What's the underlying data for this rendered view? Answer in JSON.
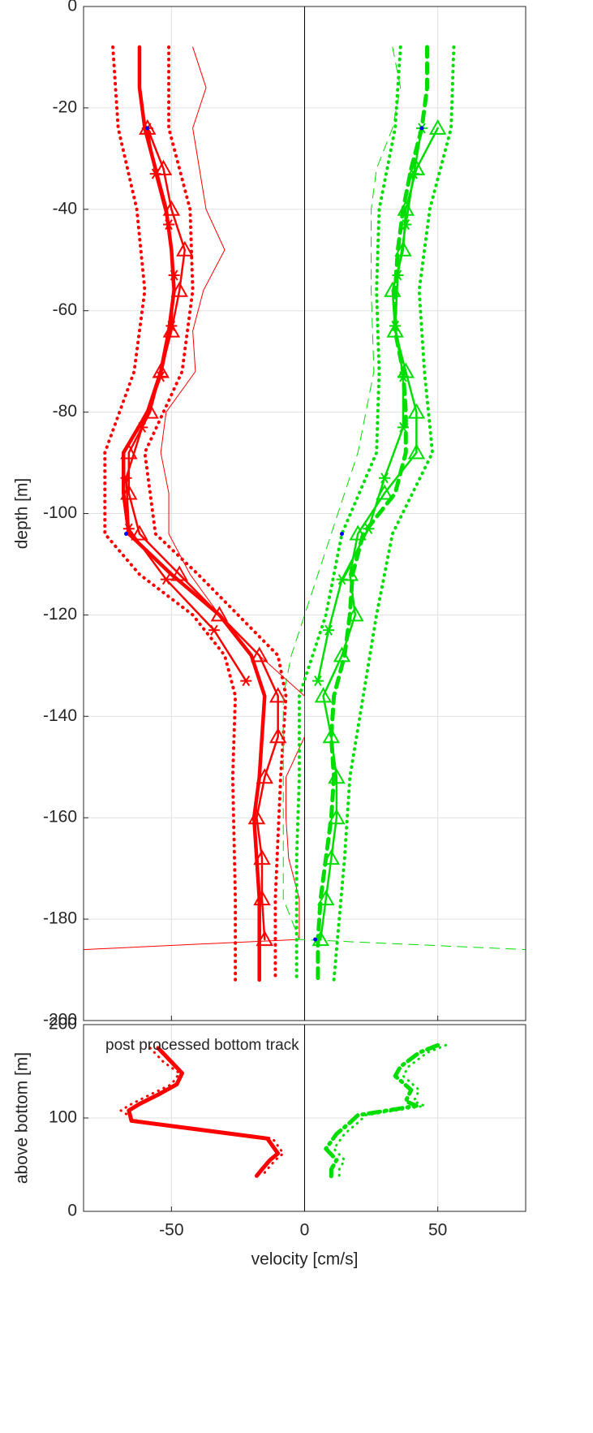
{
  "chart_data": [
    {
      "type": "line",
      "ylabel": "depth [m]",
      "xlim": [
        -83,
        83
      ],
      "ylim": [
        -200,
        0
      ],
      "xticks": [
        -50,
        0,
        50
      ],
      "yticks": [
        -200,
        -180,
        -160,
        -140,
        -120,
        -100,
        -80,
        -60,
        -40,
        -20,
        0
      ],
      "grid": true,
      "zero_line": true,
      "series": [
        {
          "color": "#ff0000",
          "dash": "solid",
          "width": 1,
          "x": [
            -42,
            -37,
            -42,
            -37,
            -30,
            -38,
            -42,
            -41,
            -52,
            -54,
            -51,
            -51,
            -43,
            -32,
            -17,
            0,
            0,
            -7,
            -7,
            -6,
            -2,
            -2,
            -83
          ],
          "y": [
            -8,
            -16,
            -24,
            -40,
            -48,
            -56,
            -64,
            -72,
            -80,
            -88,
            -96,
            -104,
            -112,
            -120,
            -128,
            -136,
            -144,
            -152,
            -160,
            -168,
            -176,
            -184,
            -186
          ]
        },
        {
          "color": "#ff0000",
          "dash": "dotted",
          "width": 4,
          "x": [
            -72,
            -70,
            -63,
            -60,
            -64,
            -75,
            -75,
            -62,
            -42,
            -30,
            -26,
            -27,
            -26,
            -26
          ],
          "y": [
            -8,
            -24,
            -40,
            -56,
            -72,
            -88,
            -104,
            -112,
            -120,
            -128,
            -136,
            -152,
            -176,
            -192
          ]
        },
        {
          "color": "#ff0000",
          "dash": "dotted",
          "width": 4,
          "x": [
            -51,
            -51,
            -43,
            -42,
            -46,
            -60,
            -56,
            -40,
            -25,
            -10,
            -7,
            -9,
            -11,
            -11
          ],
          "y": [
            -8,
            -24,
            -40,
            -56,
            -72,
            -88,
            -104,
            -112,
            -120,
            -128,
            -136,
            -152,
            -176,
            -192
          ]
        },
        {
          "color": "#ff0000",
          "dash": "solid",
          "width": 4.5,
          "x": [
            -62,
            -62,
            -60,
            -56,
            -52,
            -50,
            -49,
            -51,
            -54,
            -59,
            -68,
            -68,
            -66,
            -50,
            -32,
            -20,
            -15,
            -16,
            -17,
            -19,
            -18,
            -17,
            -17,
            -17
          ],
          "y": [
            -8,
            -16,
            -24,
            -32,
            -40,
            -48,
            -56,
            -64,
            -72,
            -80,
            -88,
            -96,
            -104,
            -112,
            -120,
            -128,
            -136,
            -144,
            -152,
            -160,
            -168,
            -176,
            -184,
            -192
          ]
        },
        {
          "color": "#ff0000",
          "dash": "solid",
          "width": 2.5,
          "marker": "triangle",
          "x": [
            -59,
            -53,
            -50,
            -45,
            -47,
            -50,
            -54,
            -58,
            -66,
            -66,
            -62,
            -47,
            -32,
            -17,
            -10,
            -10,
            -15,
            -18,
            -16,
            -16,
            -15
          ],
          "y": [
            -24,
            -32,
            -40,
            -48,
            -56,
            -64,
            -72,
            -80,
            -88,
            -96,
            -104,
            -112,
            -120,
            -128,
            -136,
            -144,
            -152,
            -160,
            -168,
            -176,
            -184
          ]
        },
        {
          "color": "#ff0000",
          "dash": "solid",
          "width": 2.5,
          "marker": "star",
          "x": [
            -59,
            -56,
            -51,
            -49,
            -50,
            -54,
            -61,
            -67,
            -66,
            -52,
            -34,
            -22
          ],
          "y": [
            -24,
            -33,
            -43,
            -53,
            -63,
            -73,
            -83,
            -93,
            -103,
            -113,
            -123,
            -133
          ]
        },
        {
          "color": "#00dd00",
          "dash": "dashed",
          "width": 1,
          "x": [
            33,
            36,
            33,
            27,
            25,
            25,
            26,
            20,
            10,
            0,
            -5,
            -8,
            -8,
            -8,
            -2,
            83
          ],
          "y": [
            -8,
            -16,
            -24,
            -32,
            -40,
            -56,
            -72,
            -88,
            -104,
            -120,
            -128,
            -136,
            -152,
            -176,
            -184,
            -186
          ]
        },
        {
          "color": "#00dd00",
          "dash": "dotted",
          "width": 4,
          "x": [
            36,
            34,
            28,
            27,
            28,
            27,
            14,
            8,
            -2,
            -2,
            -3,
            -3
          ],
          "y": [
            -8,
            -24,
            -40,
            -56,
            -72,
            -88,
            -104,
            -120,
            -136,
            -152,
            -168,
            -192
          ]
        },
        {
          "color": "#00dd00",
          "dash": "dotted",
          "width": 4,
          "x": [
            56,
            55,
            47,
            43,
            45,
            48,
            33,
            27,
            22,
            17,
            15,
            11
          ],
          "y": [
            -8,
            -24,
            -40,
            -56,
            -72,
            -88,
            -104,
            -120,
            -136,
            -152,
            -168,
            -192
          ]
        },
        {
          "color": "#00dd00",
          "dash": "dashed",
          "width": 5,
          "x": [
            46,
            46,
            44,
            40,
            37,
            35,
            34,
            34,
            37,
            38,
            38,
            34,
            22,
            18,
            17,
            15,
            11,
            10,
            11,
            10,
            8,
            6,
            5,
            5
          ],
          "y": [
            -8,
            -16,
            -24,
            -32,
            -40,
            -48,
            -56,
            -64,
            -72,
            -80,
            -88,
            -96,
            -104,
            -112,
            -120,
            -128,
            -136,
            -144,
            -152,
            -160,
            -168,
            -176,
            -184,
            -192
          ]
        },
        {
          "color": "#00dd00",
          "dash": "solid",
          "width": 2.5,
          "marker": "triangle",
          "x": [
            50,
            42,
            38,
            37,
            33,
            34,
            38,
            42,
            42,
            30,
            20,
            17,
            19,
            14,
            7,
            10,
            12,
            12,
            10,
            8,
            6
          ],
          "y": [
            -24,
            -32,
            -40,
            -48,
            -56,
            -64,
            -72,
            -80,
            -88,
            -96,
            -104,
            -112,
            -120,
            -128,
            -136,
            -144,
            -152,
            -160,
            -168,
            -176,
            -184
          ]
        },
        {
          "color": "#00dd00",
          "dash": "solid",
          "width": 2.5,
          "marker": "star",
          "x": [
            44,
            41,
            38,
            35,
            34,
            37,
            37,
            30,
            24,
            14,
            9,
            5
          ],
          "y": [
            -24,
            -33,
            -43,
            -53,
            -63,
            -73,
            -83,
            -93,
            -103,
            -113,
            -123,
            -133
          ]
        },
        {
          "color": "#0000ff",
          "dash": "none",
          "width": 0,
          "marker": "dot",
          "x": [
            -59,
            -67,
            44,
            14,
            4
          ],
          "y": [
            -24,
            -104,
            -24,
            -104,
            -184
          ]
        }
      ]
    },
    {
      "type": "line",
      "ylabel": "above bottom [m]",
      "xlabel": "velocity [cm/s]",
      "annotation": "post processed bottom track",
      "xlim": [
        -83,
        83
      ],
      "ylim": [
        0,
        200
      ],
      "xticks": [
        -50,
        0,
        50
      ],
      "yticks": [
        0,
        100,
        200
      ],
      "grid": true,
      "zero_line": true,
      "series": [
        {
          "color": "#ff0000",
          "dash": "dotted",
          "width": 3,
          "x": [
            -58,
            -53,
            -47,
            -50,
            -58,
            -65,
            -69,
            -63,
            -12,
            -8,
            -11,
            -14,
            -16
          ],
          "y": [
            175,
            160,
            148,
            136,
            125,
            115,
            108,
            97,
            78,
            62,
            55,
            45,
            38
          ]
        },
        {
          "color": "#ff0000",
          "dash": "solid",
          "width": 5,
          "x": [
            -55,
            -50,
            -46,
            -48,
            -55,
            -62,
            -66,
            -65,
            -14,
            -10,
            -13,
            -16,
            -18
          ],
          "y": [
            175,
            160,
            148,
            136,
            125,
            115,
            108,
            97,
            78,
            62,
            55,
            45,
            38
          ]
        },
        {
          "color": "#00dd00",
          "dash": "dotted",
          "width": 3,
          "x": [
            53,
            46,
            39,
            37,
            43,
            41,
            45,
            23,
            20,
            15,
            13,
            11,
            15,
            13,
            13
          ],
          "y": [
            178,
            170,
            155,
            145,
            130,
            118,
            113,
            103,
            95,
            83,
            75,
            67,
            55,
            45,
            35
          ]
        },
        {
          "color": "#00dd00",
          "dash": "dashdot",
          "width": 5,
          "x": [
            50,
            43,
            36,
            34,
            40,
            38,
            42,
            20,
            17,
            12,
            10,
            8,
            12,
            10,
            10
          ],
          "y": [
            178,
            170,
            155,
            145,
            130,
            118,
            113,
            103,
            95,
            83,
            75,
            67,
            55,
            45,
            35
          ]
        }
      ]
    }
  ]
}
